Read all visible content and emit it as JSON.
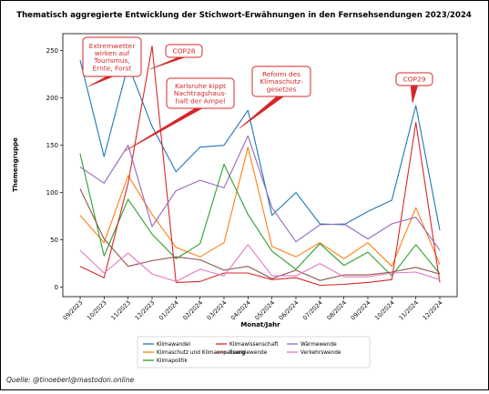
{
  "source": "Quelle: @tinoeberl@mastodon.online",
  "chart_data": {
    "type": "line",
    "title": "Thematisch aggregierte Entwicklung der Stichwort-Erwähnungen in den Fernsehsendungen 2023/2024",
    "xlabel": "Monat/Jahr",
    "ylabel": "Themengruppe",
    "ylim": [
      -10,
      268
    ],
    "yticks": [
      0,
      50,
      100,
      150,
      200,
      250
    ],
    "grid": false,
    "legend": "bottom",
    "categories": [
      "09/2023",
      "10/2023",
      "11/2023",
      "12/2023",
      "01/2024",
      "02/2024",
      "03/2024",
      "04/2024",
      "05/2024",
      "06/2024",
      "07/2024",
      "08/2024",
      "09/2024",
      "10/2024",
      "11/2024",
      "12/2024"
    ],
    "series": [
      {
        "name": "Klimawandel",
        "color": "#1f77b4",
        "values": [
          240,
          138,
          235,
          170,
          122,
          148,
          150,
          187,
          76,
          100,
          67,
          66,
          80,
          92,
          192,
          60
        ]
      },
      {
        "name": "Klimaschutz und Klimaanpassung",
        "color": "#ff7f0e",
        "values": [
          76,
          47,
          118,
          77,
          42,
          32,
          47,
          148,
          43,
          32,
          47,
          30,
          47,
          22,
          84,
          24
        ]
      },
      {
        "name": "Klimapolitik",
        "color": "#2ca02c",
        "values": [
          141,
          33,
          93,
          56,
          30,
          46,
          130,
          77,
          38,
          19,
          46,
          23,
          37,
          12,
          45,
          14
        ]
      },
      {
        "name": "Klimawissenschaft",
        "color": "#d62728",
        "values": [
          22,
          10,
          110,
          255,
          5,
          6,
          15,
          15,
          8,
          10,
          2,
          3,
          5,
          8,
          174,
          5
        ]
      },
      {
        "name": "Energiewende",
        "color": "#8c564b",
        "values": [
          104,
          51,
          22,
          28,
          32,
          29,
          18,
          22,
          9,
          18,
          7,
          13,
          13,
          16,
          21,
          14
        ]
      },
      {
        "name": "Wärmewende",
        "color": "#9467bd",
        "values": [
          127,
          110,
          150,
          64,
          102,
          113,
          105,
          160,
          84,
          48,
          66,
          67,
          51,
          67,
          74,
          39
        ]
      },
      {
        "name": "Verkehrswende",
        "color": "#e377c2",
        "values": [
          39,
          15,
          36,
          14,
          6,
          19,
          12,
          45,
          12,
          12,
          25,
          11,
          11,
          15,
          16,
          8
        ]
      }
    ],
    "annotations": [
      {
        "text": "Extremwetter\nwirken auf\nTourismus,\nErnte, Forst",
        "x": "09/2023",
        "y": 240
      },
      {
        "text": "COP28",
        "x": "12/2023",
        "y": 255
      },
      {
        "text": "Karlsruhe kippt\nNachtragshaus-\nhalt der Ampel",
        "x": "11/2023",
        "y": 115
      },
      {
        "text": "Reform des\nKlimaschutz-\ngesetzes",
        "x": "04/2024",
        "y": 187
      },
      {
        "text": "COP29",
        "x": "11/2024",
        "y": 192
      }
    ]
  }
}
